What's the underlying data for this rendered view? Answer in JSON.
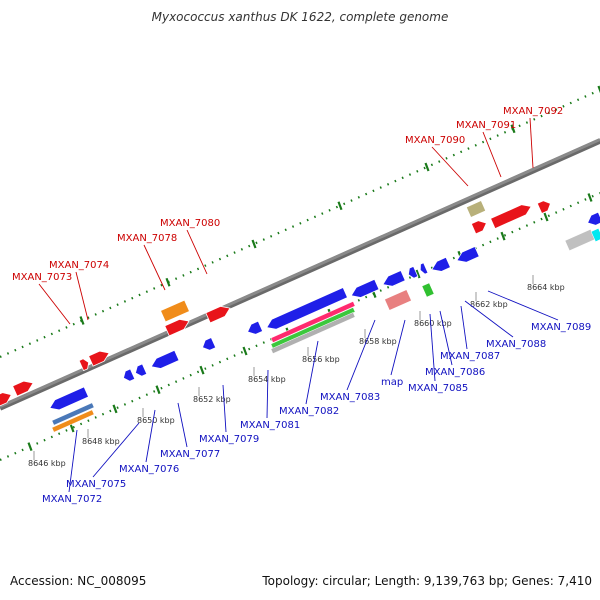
{
  "title": "Myxococcus xanthus DK 1622, complete genome",
  "footer": {
    "accession": "Accession: NC_008095",
    "stats": "Topology: circular; Length: 9,139,763 bp; Genes: 7,410"
  },
  "colors": {
    "forward_gene": "#e8141a",
    "reverse_gene": "#1f1fe8",
    "forward_label": "#cc0000",
    "reverse_label": "#1010c0",
    "backbone": "#8a8a8a",
    "ruler_tick": "#1a7a1a",
    "ruler_text": "#333333"
  },
  "scale_labels": [
    "8646 kbp",
    "8648 kbp",
    "8650 kbp",
    "8652 kbp",
    "8654 kbp",
    "8656 kbp",
    "8658 kbp",
    "8660 kbp",
    "8662 kbp",
    "8664 kbp"
  ],
  "forward_genes": [
    "MXAN_7073",
    "MXAN_7074",
    "MXAN_7078",
    "MXAN_7080",
    "MXAN_7090",
    "MXAN_7091",
    "MXAN_7092"
  ],
  "reverse_genes": [
    "MXAN_7072",
    "MXAN_7075",
    "MXAN_7076",
    "MXAN_7077",
    "MXAN_7079",
    "MXAN_7081",
    "MXAN_7082",
    "MXAN_7083",
    "map",
    "MXAN_7085",
    "MXAN_7086",
    "MXAN_7087",
    "MXAN_7088",
    "MXAN_7089"
  ]
}
